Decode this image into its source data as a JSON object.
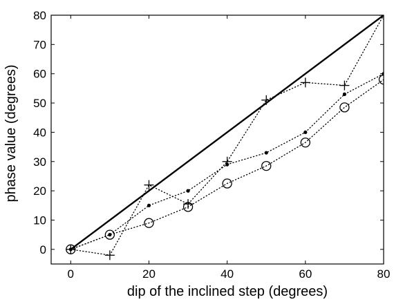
{
  "chart_data": {
    "type": "line",
    "title": "",
    "xlabel": "dip of the inclined step (degrees)",
    "ylabel": "phase value (degrees)",
    "xlim": [
      -5,
      80
    ],
    "ylim": [
      -5,
      80
    ],
    "xticks": [
      0,
      20,
      40,
      60,
      80
    ],
    "yticks": [
      0,
      10,
      20,
      30,
      40,
      50,
      60,
      70,
      80
    ],
    "grid": false,
    "legend": "none",
    "series": [
      {
        "marker": "none",
        "line": "solid",
        "color": "#000000",
        "x": [
          0,
          80
        ],
        "y": [
          0,
          80
        ]
      },
      {
        "marker": "plus",
        "line": "dotted",
        "color": "#000000",
        "x": [
          0,
          10,
          20,
          30,
          40,
          50,
          60,
          70,
          80
        ],
        "y": [
          0,
          -2,
          22,
          15.5,
          30,
          51,
          57,
          56,
          80
        ]
      },
      {
        "marker": "dot",
        "line": "dotted",
        "color": "#000000",
        "x": [
          0,
          10,
          20,
          30,
          40,
          50,
          60,
          70,
          80
        ],
        "y": [
          0,
          5,
          15,
          20,
          29,
          33,
          40,
          53,
          60
        ]
      },
      {
        "marker": "circle",
        "line": "dotted",
        "color": "#000000",
        "x": [
          0,
          10,
          20,
          30,
          40,
          50,
          60,
          70,
          80
        ],
        "y": [
          0,
          5,
          9,
          14.5,
          22.5,
          28.5,
          36.5,
          48.5,
          58
        ]
      }
    ]
  }
}
